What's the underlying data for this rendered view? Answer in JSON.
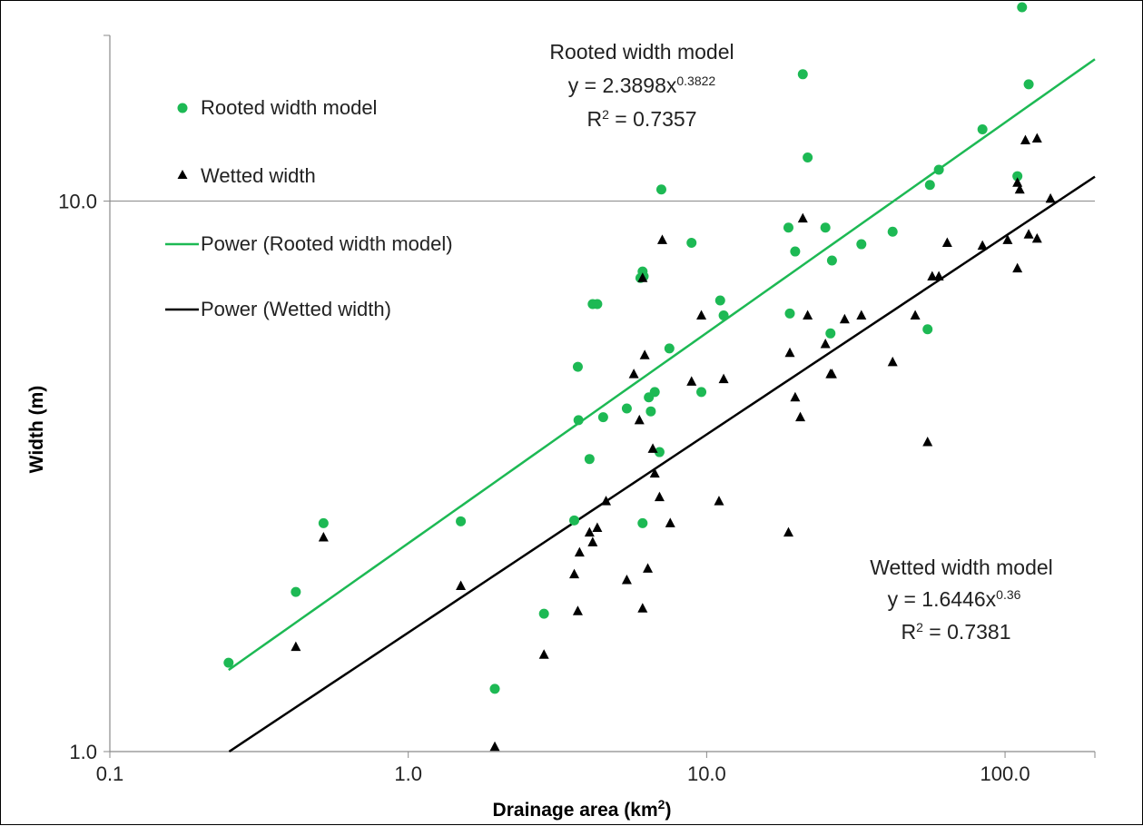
{
  "chart_data": {
    "type": "scatter",
    "xscale": "log",
    "yscale": "log",
    "xlim": [
      0.1,
      200
    ],
    "ylim": [
      1,
      20
    ],
    "xlabel": "Drainage area (km",
    "xlabel_sup": "2",
    "xlabel_end": ")",
    "ylabel": "Width (m)",
    "xticks": [
      "0.1",
      "1.0",
      "10.0",
      "100.0"
    ],
    "yticks": [
      "1.0",
      "10.0"
    ],
    "grid": "horizontal at 10.0",
    "legend_position": "top-left",
    "series": [
      {
        "name": "Rooted width model",
        "marker": "circle",
        "color": "#1db954",
        "points": [
          [
            0.25,
            1.45
          ],
          [
            0.42,
            1.95
          ],
          [
            0.52,
            2.6
          ],
          [
            1.5,
            2.62
          ],
          [
            1.95,
            1.3
          ],
          [
            2.85,
            1.78
          ],
          [
            3.6,
            2.63
          ],
          [
            3.7,
            5.0
          ],
          [
            3.72,
            4.0
          ],
          [
            4.05,
            3.4
          ],
          [
            4.15,
            6.5
          ],
          [
            4.3,
            6.5
          ],
          [
            4.5,
            4.05
          ],
          [
            5.4,
            4.2
          ],
          [
            6.0,
            7.25
          ],
          [
            6.1,
            7.45
          ],
          [
            6.15,
            7.3
          ],
          [
            6.1,
            2.6
          ],
          [
            6.4,
            4.4
          ],
          [
            6.5,
            4.15
          ],
          [
            6.7,
            4.5
          ],
          [
            6.95,
            3.5
          ],
          [
            7.05,
            10.5
          ],
          [
            7.5,
            5.4
          ],
          [
            8.9,
            8.4
          ],
          [
            9.6,
            4.5
          ],
          [
            11.1,
            6.6
          ],
          [
            11.4,
            6.2
          ],
          [
            18.8,
            8.95
          ],
          [
            19.0,
            6.25
          ],
          [
            19.8,
            8.1
          ],
          [
            21.0,
            17.0
          ],
          [
            21.8,
            12.0
          ],
          [
            25.0,
            8.95
          ],
          [
            26.0,
            5.75
          ],
          [
            26.3,
            7.8
          ],
          [
            33.0,
            8.35
          ],
          [
            42.0,
            8.8
          ],
          [
            55.0,
            5.85
          ],
          [
            56.0,
            10.7
          ],
          [
            60.0,
            11.4
          ],
          [
            84.0,
            13.5
          ],
          [
            110.0,
            11.1
          ],
          [
            114.0,
            22.5
          ],
          [
            120.0,
            16.3
          ]
        ]
      },
      {
        "name": "Wetted width",
        "marker": "triangle",
        "color": "#000000",
        "points": [
          [
            0.42,
            1.55
          ],
          [
            0.52,
            2.45
          ],
          [
            1.5,
            2.0
          ],
          [
            1.95,
            1.02
          ],
          [
            2.85,
            1.5
          ],
          [
            3.6,
            2.1
          ],
          [
            3.7,
            1.8
          ],
          [
            3.75,
            2.3
          ],
          [
            4.05,
            2.5
          ],
          [
            4.15,
            2.4
          ],
          [
            4.3,
            2.55
          ],
          [
            4.6,
            2.85
          ],
          [
            5.4,
            2.05
          ],
          [
            5.7,
            4.85
          ],
          [
            5.95,
            4.0
          ],
          [
            6.1,
            1.82
          ],
          [
            6.2,
            5.25
          ],
          [
            6.1,
            7.25
          ],
          [
            6.35,
            2.15
          ],
          [
            6.6,
            3.55
          ],
          [
            6.7,
            3.2
          ],
          [
            6.95,
            2.9
          ],
          [
            7.1,
            8.5
          ],
          [
            7.55,
            2.6
          ],
          [
            8.9,
            4.7
          ],
          [
            9.6,
            6.2
          ],
          [
            11.0,
            2.85
          ],
          [
            11.4,
            4.75
          ],
          [
            18.8,
            2.5
          ],
          [
            19.0,
            5.3
          ],
          [
            19.8,
            4.4
          ],
          [
            20.6,
            4.05
          ],
          [
            21.0,
            9.3
          ],
          [
            21.8,
            6.2
          ],
          [
            25.0,
            5.5
          ],
          [
            26.0,
            4.85
          ],
          [
            26.3,
            4.85
          ],
          [
            29.0,
            6.1
          ],
          [
            33.0,
            6.2
          ],
          [
            42.0,
            5.1
          ],
          [
            50.0,
            6.2
          ],
          [
            55.0,
            3.65
          ],
          [
            57.0,
            7.3
          ],
          [
            60.0,
            7.3
          ],
          [
            64.0,
            8.4
          ],
          [
            84.0,
            8.3
          ],
          [
            102.0,
            8.5
          ],
          [
            110.0,
            10.8
          ],
          [
            110.0,
            7.55
          ],
          [
            112.0,
            10.5
          ],
          [
            117.0,
            12.9
          ],
          [
            120.0,
            8.7
          ],
          [
            128.0,
            13.0
          ],
          [
            128.0,
            8.55
          ],
          [
            142.0,
            10.1
          ]
        ]
      }
    ],
    "trendlines": [
      {
        "name": "Power (Rooted width model)",
        "color": "#1db954",
        "a": 2.3898,
        "b": 0.3822,
        "x_range": [
          0.25,
          200
        ]
      },
      {
        "name": "Power (Wetted width)",
        "color": "#000000",
        "a": 1.6446,
        "b": 0.36,
        "x_range": [
          0.25,
          200
        ]
      }
    ],
    "annotations": [
      {
        "title": "Rooted width model",
        "eq_prefix": "y = 2.3898x",
        "eq_exp": "0.3822",
        "r2_prefix": "R",
        "r2_sup": "2",
        "r2_suffix": " = 0.7357"
      },
      {
        "title": "Wetted width model",
        "eq_prefix": "y = 1.6446x",
        "eq_exp": "0.36",
        "r2_prefix": "R",
        "r2_sup": "2",
        "r2_suffix": " = 0.7381"
      }
    ]
  }
}
